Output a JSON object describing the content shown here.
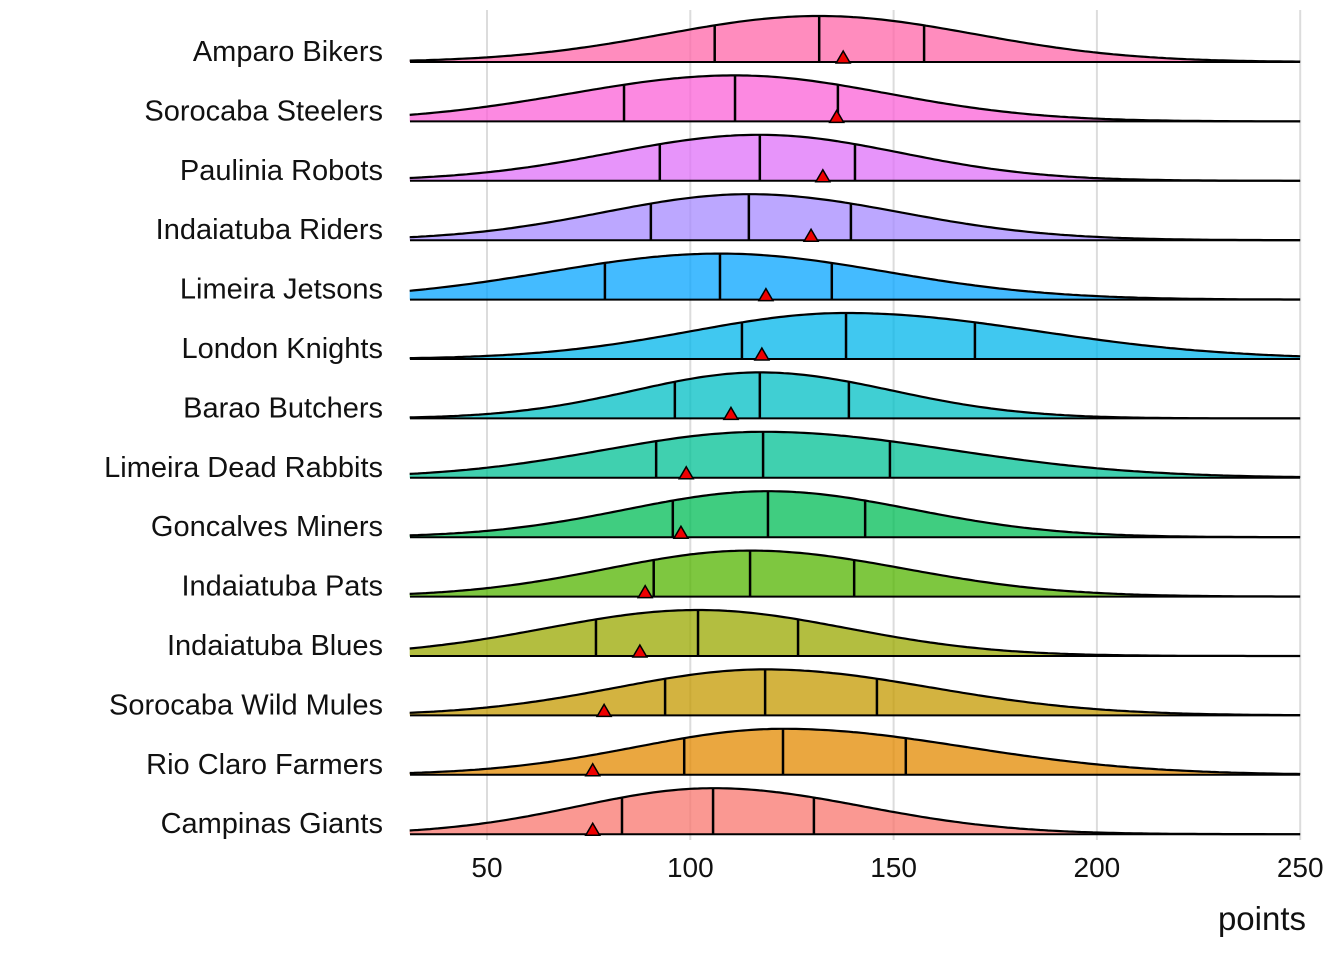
{
  "chart_data": {
    "type": "ridgeline",
    "title": "",
    "xlabel": "points",
    "ylabel": "",
    "xlim": [
      31,
      250
    ],
    "xticks": [
      50,
      100,
      150,
      200,
      250
    ],
    "tick_labels": [
      "50",
      "100",
      "150",
      "200",
      "250"
    ],
    "grid": true,
    "mean_marker": "red triangle",
    "quantile_lines": [
      0.25,
      0.5,
      0.75
    ],
    "series": [
      {
        "name": "Amparo Bikers",
        "q1": 106,
        "median": 131.7,
        "q3": 157.5,
        "mean": 137.6,
        "color": "#FF66A8"
      },
      {
        "name": "Sorocaba Steelers",
        "q1": 83.7,
        "median": 111,
        "q3": 136.3,
        "mean": 136,
        "color": "#FB61D7"
      },
      {
        "name": "Paulinia Robots",
        "q1": 92.5,
        "median": 117.1,
        "q3": 140.5,
        "mean": 132.6,
        "color": "#DF70F8"
      },
      {
        "name": "Indaiatuba Riders",
        "q1": 90.3,
        "median": 114.4,
        "q3": 139.5,
        "mean": 129.7,
        "color": "#A58AFF"
      },
      {
        "name": "Limeira Jetsons",
        "q1": 79,
        "median": 107.3,
        "q3": 134.8,
        "mean": 118.6,
        "color": "#06A4FF"
      },
      {
        "name": "London Knights",
        "q1": 112.7,
        "median": 138.3,
        "q3": 170,
        "mean": 117.6,
        "color": "#00B6EB"
      },
      {
        "name": "Barao Butchers",
        "q1": 96.2,
        "median": 117.1,
        "q3": 139,
        "mean": 110,
        "color": "#00BFC4"
      },
      {
        "name": "Limeira Dead Rabbits",
        "q1": 91.6,
        "median": 117.9,
        "q3": 149.1,
        "mean": 99,
        "color": "#00C094"
      },
      {
        "name": "Goncalves Miners",
        "q1": 95.7,
        "median": 119.1,
        "q3": 143,
        "mean": 97.7,
        "color": "#00BC56"
      },
      {
        "name": "Indaiatuba Pats",
        "q1": 91,
        "median": 114.7,
        "q3": 140.3,
        "mean": 88.9,
        "color": "#53B400"
      },
      {
        "name": "Indaiatuba Blues",
        "q1": 76.8,
        "median": 101.9,
        "q3": 126.5,
        "mean": 87.6,
        "color": "#99A800"
      },
      {
        "name": "Sorocaba Wild Mules",
        "q1": 93.8,
        "median": 118.4,
        "q3": 145.9,
        "mean": 78.8,
        "color": "#C49A00"
      },
      {
        "name": "Rio Claro Farmers",
        "q1": 98.5,
        "median": 122.8,
        "q3": 153,
        "mean": 76,
        "color": "#E38900"
      },
      {
        "name": "Campinas Giants",
        "q1": 83.2,
        "median": 105.6,
        "q3": 130.4,
        "mean": 76,
        "color": "#F8766D"
      }
    ]
  }
}
